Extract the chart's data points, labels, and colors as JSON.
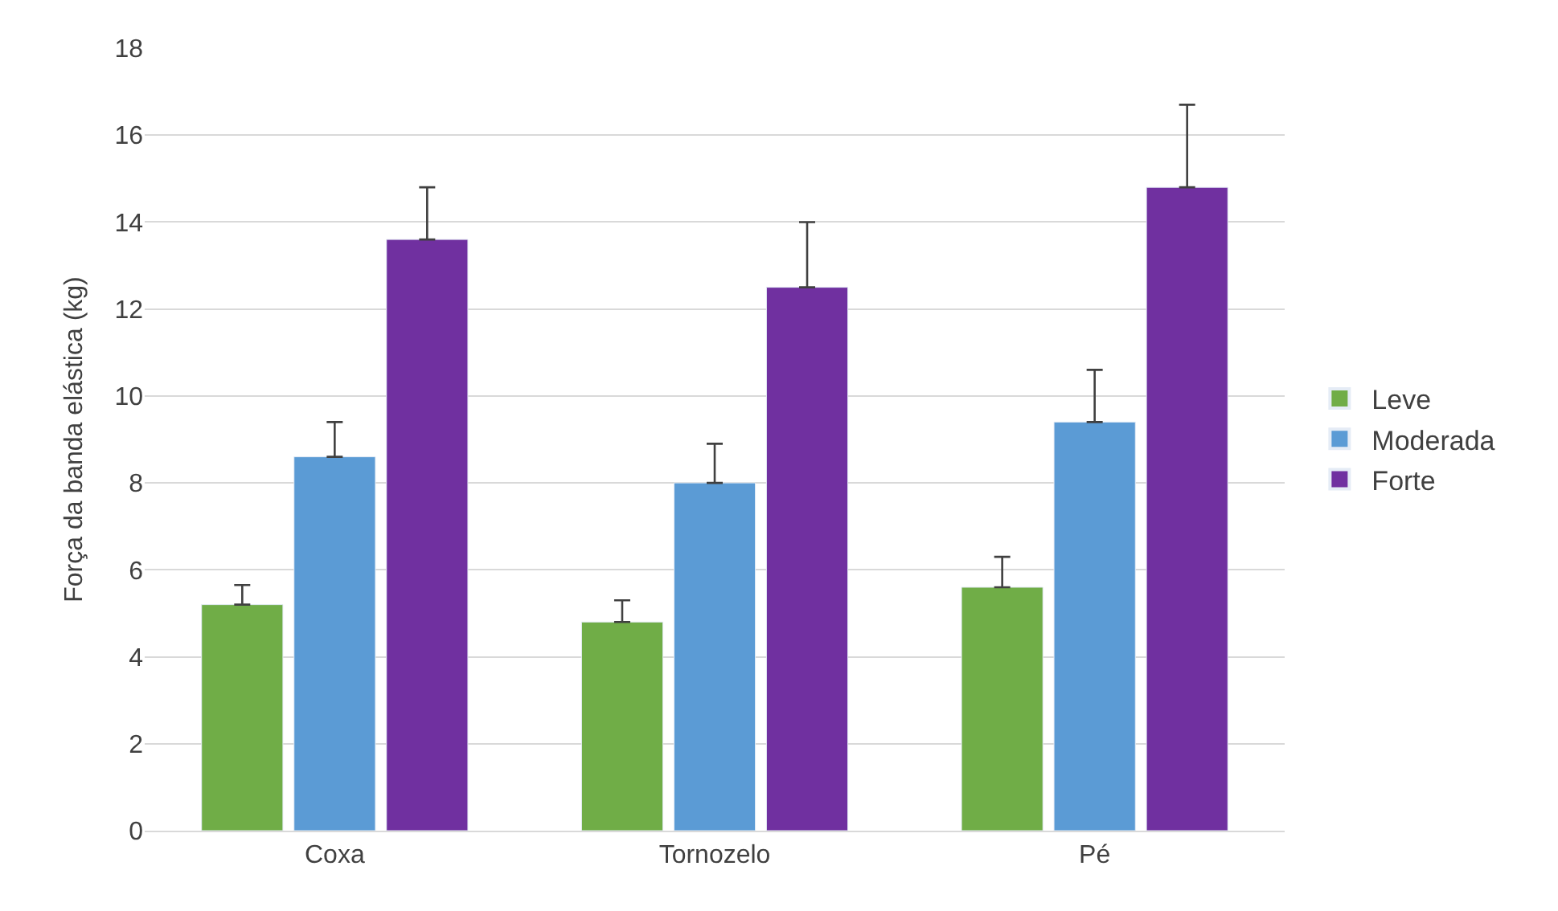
{
  "chart_data": {
    "type": "bar",
    "ylabel": "Força da banda elástica (kg)",
    "categories": [
      "Coxa",
      "Tornozelo",
      "Pé"
    ],
    "series": [
      {
        "name": "Leve",
        "color": "#70ad47",
        "values": [
          5.2,
          4.8,
          5.6
        ],
        "errors": [
          [
            5.2,
            5.65
          ],
          [
            4.8,
            5.3
          ],
          [
            5.6,
            6.3
          ]
        ]
      },
      {
        "name": "Moderada",
        "color": "#5b9bd5",
        "values": [
          8.6,
          8.0,
          9.4
        ],
        "errors": [
          [
            8.6,
            9.4
          ],
          [
            8.0,
            8.9
          ],
          [
            9.4,
            10.6
          ]
        ]
      },
      {
        "name": "Forte",
        "color": "#7030a0",
        "values": [
          13.6,
          12.5,
          14.8
        ],
        "errors": [
          [
            13.6,
            14.8
          ],
          [
            12.5,
            14.0
          ],
          [
            14.8,
            16.7
          ]
        ]
      }
    ],
    "ylim": [
      0,
      18
    ],
    "yticks": [
      0,
      2,
      4,
      6,
      8,
      10,
      12,
      14,
      16,
      18
    ],
    "grid": "y",
    "legend": "right"
  }
}
